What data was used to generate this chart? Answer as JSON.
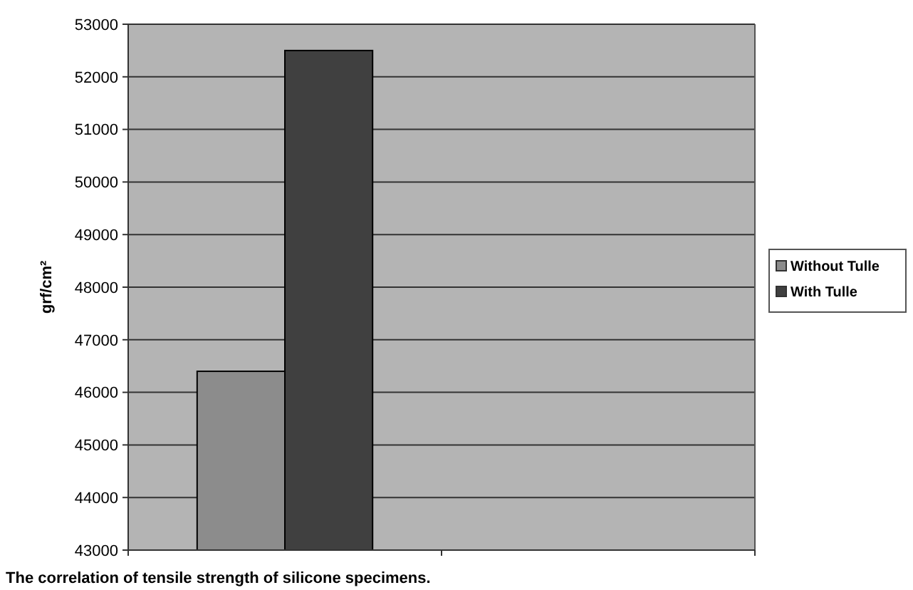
{
  "chart_data": {
    "type": "bar",
    "xlabel": "The correlation of tensile strength of silicone specimens.",
    "ylabel": "grf/cm²",
    "categories": [
      null,
      null
    ],
    "series": [
      {
        "name": "Without Tulle",
        "color": "#8c8c8c",
        "values": [
          46400,
          null
        ]
      },
      {
        "name": "With Tulle",
        "color": "#404040",
        "values": [
          52500,
          null
        ]
      }
    ],
    "ylim": [
      43000,
      53000
    ],
    "yticks": [
      43000,
      44000,
      45000,
      46000,
      47000,
      48000,
      49000,
      50000,
      51000,
      52000,
      53000
    ],
    "grid": "y",
    "legend": "right"
  }
}
